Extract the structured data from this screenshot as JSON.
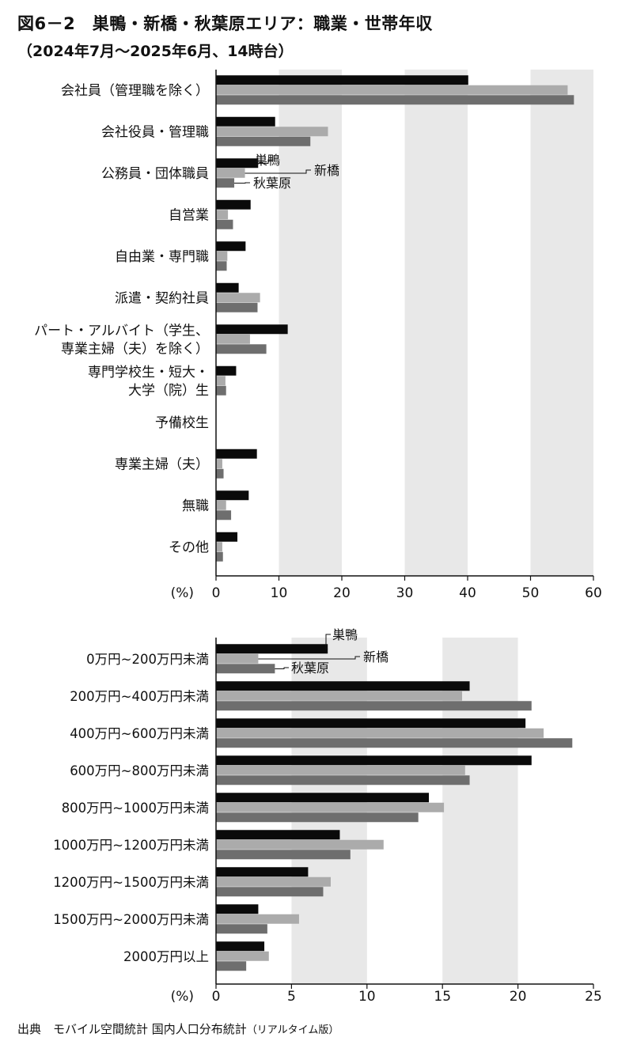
{
  "title": "図6－2　巣鴨・新橋・秋葉原エリア：職業・世帯年収",
  "subtitle": "（2024年7月～2025年6月、14時台）",
  "source": {
    "label": "出典　モバイル空間統計 国内人口分布統計",
    "note": "（リアルタイム版）"
  },
  "colors": {
    "巣鴨": "#0a0a0a",
    "新橋": "#ababab",
    "秋葉原": "#6e6e6e",
    "band": "#e8e8e8"
  },
  "chart_data": [
    {
      "type": "bar",
      "orientation": "horizontal",
      "unit_label": "(%)",
      "xlim": [
        0,
        60
      ],
      "xticks": [
        0,
        10,
        20,
        30,
        40,
        50,
        60
      ],
      "categories": [
        [
          "会社員（管理職を除く）"
        ],
        [
          "会社役員・管理職"
        ],
        [
          "公務員・団体職員"
        ],
        [
          "自営業"
        ],
        [
          "自由業・専門職"
        ],
        [
          "派遣・契約社員"
        ],
        [
          "パート・アルバイト（学生、",
          "専業主婦（夫）を除く）"
        ],
        [
          "専門学校生・短大・",
          "大学（院）生"
        ],
        [
          "予備校生"
        ],
        [
          "専業主婦（夫）"
        ],
        [
          "無職"
        ],
        [
          "その他"
        ]
      ],
      "series": [
        {
          "name": "巣鴨",
          "values": [
            40.1,
            9.4,
            6.7,
            5.5,
            4.7,
            3.6,
            11.4,
            3.2,
            0,
            6.5,
            5.2,
            3.4
          ]
        },
        {
          "name": "新橋",
          "values": [
            55.9,
            17.8,
            4.6,
            1.9,
            1.8,
            7.0,
            5.4,
            1.5,
            0,
            1.0,
            1.6,
            1.0
          ]
        },
        {
          "name": "秋葉原",
          "values": [
            56.9,
            15.0,
            2.9,
            2.7,
            1.7,
            6.6,
            8.0,
            1.6,
            0,
            1.2,
            2.4,
            1.1
          ]
        }
      ],
      "legend_labels": [
        "巣鴨",
        "新橋",
        "秋葉原"
      ]
    },
    {
      "type": "bar",
      "orientation": "horizontal",
      "unit_label": "(%)",
      "xlim": [
        0,
        25
      ],
      "xticks": [
        0,
        5,
        10,
        15,
        20,
        25
      ],
      "categories": [
        [
          "0万円~200万円未満"
        ],
        [
          "200万円~400万円未満"
        ],
        [
          "400万円~600万円未満"
        ],
        [
          "600万円~800万円未満"
        ],
        [
          "800万円~1000万円未満"
        ],
        [
          "1000万円~1200万円未満"
        ],
        [
          "1200万円~1500万円未満"
        ],
        [
          "1500万円~2000万円未満"
        ],
        [
          "2000万円以上"
        ]
      ],
      "series": [
        {
          "name": "巣鴨",
          "values": [
            7.4,
            16.8,
            20.5,
            20.9,
            14.1,
            8.2,
            6.1,
            2.8,
            3.2
          ]
        },
        {
          "name": "新橋",
          "values": [
            2.8,
            16.3,
            21.7,
            16.5,
            15.1,
            11.1,
            7.6,
            5.5,
            3.5
          ]
        },
        {
          "name": "秋葉原",
          "values": [
            3.9,
            20.9,
            23.6,
            16.8,
            13.4,
            8.9,
            7.1,
            3.4,
            2.0
          ]
        }
      ],
      "legend_labels": [
        "巣鴨",
        "新橋",
        "秋葉原"
      ]
    }
  ]
}
